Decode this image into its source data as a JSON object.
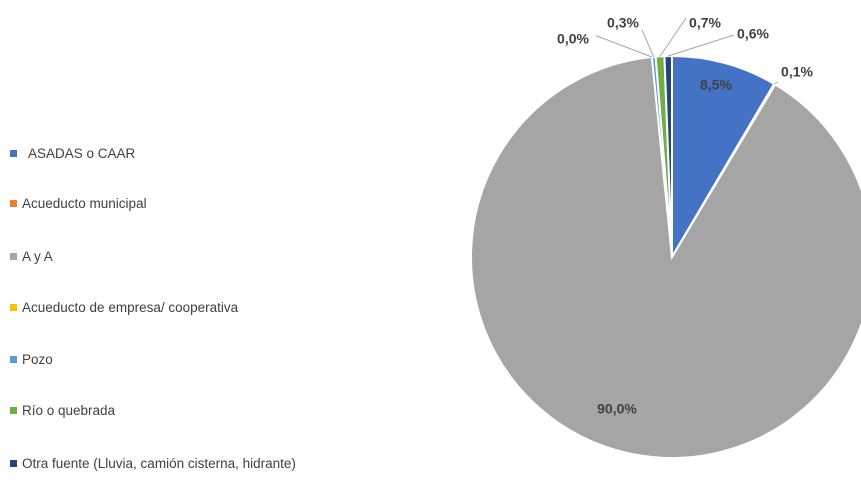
{
  "chart_data": {
    "type": "pie",
    "title": "",
    "legend_position": "left",
    "start_angle": "12 o'clock, clockwise",
    "categories": [
      "ASADAS o CAAR",
      "Acueducto municipal",
      "A y A",
      "Acueducto de empresa/ cooperativa",
      "Pozo",
      "Río o quebrada",
      "Otra fuente (Lluvia, camión cisterna, hidrante)"
    ],
    "values": [
      8.5,
      0.1,
      90.0,
      0.0,
      0.3,
      0.7,
      0.6
    ],
    "labels": [
      "8,5%",
      "0,1%",
      "90,0%",
      "0,0%",
      "0,3%",
      "0,7%",
      "0,6%"
    ],
    "colors": [
      "#4472C4",
      "#ED7D31",
      "#A5A5A5",
      "#FFC000",
      "#5B9BD5",
      "#70AD47",
      "#264478"
    ]
  }
}
